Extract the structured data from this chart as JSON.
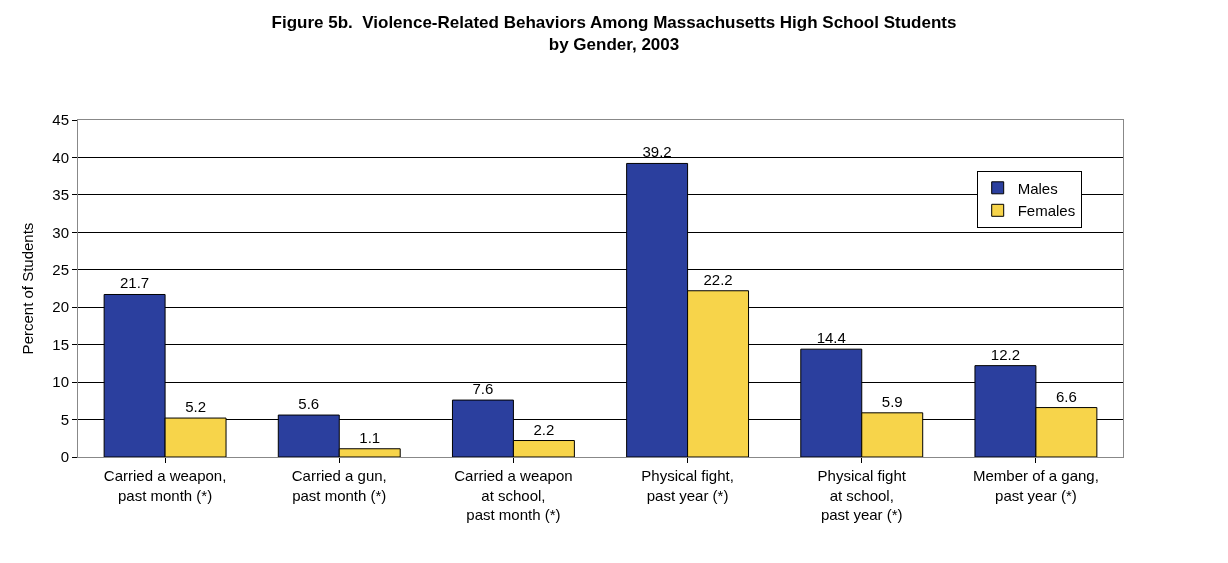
{
  "chart_data": {
    "type": "bar",
    "title": "Figure 5b.  Violence-Related Behaviors Among Massachusetts High School Students\nby Gender, 2003",
    "ylabel": "Percent of Students",
    "categories": [
      "Carried a weapon,\npast month (*)",
      "Carried a gun,\npast month (*)",
      "Carried a weapon\nat school,\npast month (*)",
      "Physical fight,\npast year (*)",
      "Physical fight\nat school,\npast year (*)",
      "Member of a gang,\npast year (*)"
    ],
    "series": [
      {
        "name": "Males",
        "color": "#2b3f9e",
        "values": [
          21.7,
          5.6,
          7.6,
          39.2,
          14.4,
          12.2
        ]
      },
      {
        "name": "Females",
        "color": "#f7d44a",
        "values": [
          5.2,
          1.1,
          2.2,
          22.2,
          5.9,
          6.6
        ]
      }
    ],
    "ylim": [
      0,
      45
    ],
    "yticks": [
      0,
      5,
      10,
      15,
      20,
      25,
      30,
      35,
      40,
      45
    ],
    "grid": "y",
    "legend": "top right",
    "data_labels": true
  }
}
